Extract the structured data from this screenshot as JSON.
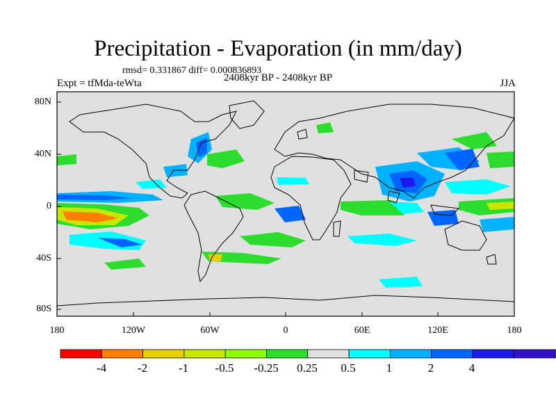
{
  "title": "Precipitation - Evaporation (in mm/day)",
  "stats": "rmsd= 0.331867  diff= 0.000836893",
  "experiment": "Expt = tfMda-teWta",
  "period": "2408kyr BP - 2408kyr BP",
  "season": "JJA",
  "lat_labels": [
    "80N",
    "40N",
    "0",
    "40S",
    "80S"
  ],
  "lon_labels": [
    "180",
    "120W",
    "60W",
    "0",
    "60E",
    "120E",
    "180"
  ],
  "colorbar": {
    "colors": [
      "#ff0000",
      "#ff7f00",
      "#e6d000",
      "#c8e600",
      "#8cff00",
      "#2ddd2d",
      "#e0e0e0",
      "#00ffff",
      "#00b2ff",
      "#0066ff",
      "#1a1aee",
      "#3311cc",
      "#7f1aff"
    ],
    "labels": [
      "-4",
      "-2",
      "-1",
      "-0.5",
      "-0.25",
      "0.25",
      "0.5",
      "1",
      "2",
      "4"
    ]
  },
  "colors": {
    "background": "#e0e0e0",
    "coast": "#000000"
  }
}
